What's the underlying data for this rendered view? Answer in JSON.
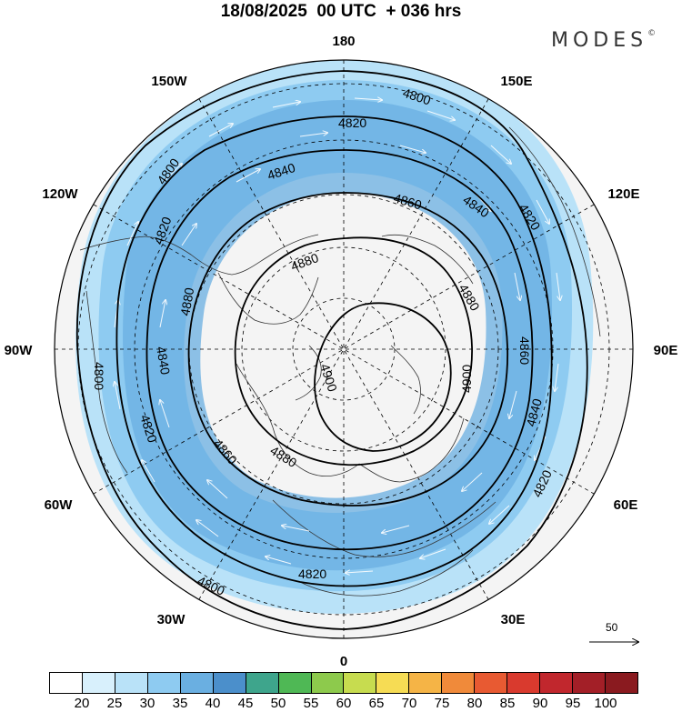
{
  "title": "18/08/2025  00 UTC  + 036 hrs",
  "brand": {
    "name": "MODES",
    "mark": "©"
  },
  "map": {
    "projection": "polar-stereographic",
    "hemisphere": "north",
    "longitude_labels": [
      {
        "text": "180",
        "lon": 180
      },
      {
        "text": "150E",
        "lon": 150
      },
      {
        "text": "120E",
        "lon": 120
      },
      {
        "text": "90E",
        "lon": 90
      },
      {
        "text": "60E",
        "lon": 60
      },
      {
        "text": "30E",
        "lon": 30
      },
      {
        "text": "0",
        "lon": 0
      },
      {
        "text": "30W",
        "lon": -30
      },
      {
        "text": "60W",
        "lon": -60
      },
      {
        "text": "90W",
        "lon": -90
      },
      {
        "text": "120W",
        "lon": -120
      },
      {
        "text": "150W",
        "lon": -150
      }
    ],
    "contour_labels": [
      "4800",
      "4820",
      "4840",
      "4860",
      "4880",
      "4900"
    ],
    "reference_vector": {
      "label": "50"
    }
  },
  "colorbar": {
    "labels": [
      "20",
      "25",
      "30",
      "35",
      "40",
      "45",
      "50",
      "55",
      "60",
      "65",
      "70",
      "75",
      "80",
      "85",
      "90",
      "95",
      "100"
    ],
    "colors": [
      "#ffffff",
      "#d8f0fc",
      "#b9e2f8",
      "#8ecbf1",
      "#6aafe1",
      "#4b8fcb",
      "#3ea58c",
      "#4fb855",
      "#8dca4c",
      "#c7dc4f",
      "#f6dc54",
      "#f5b446",
      "#f08a3a",
      "#e85a32",
      "#d93a2e",
      "#c1272d",
      "#a31f27",
      "#8a1a1f"
    ]
  }
}
